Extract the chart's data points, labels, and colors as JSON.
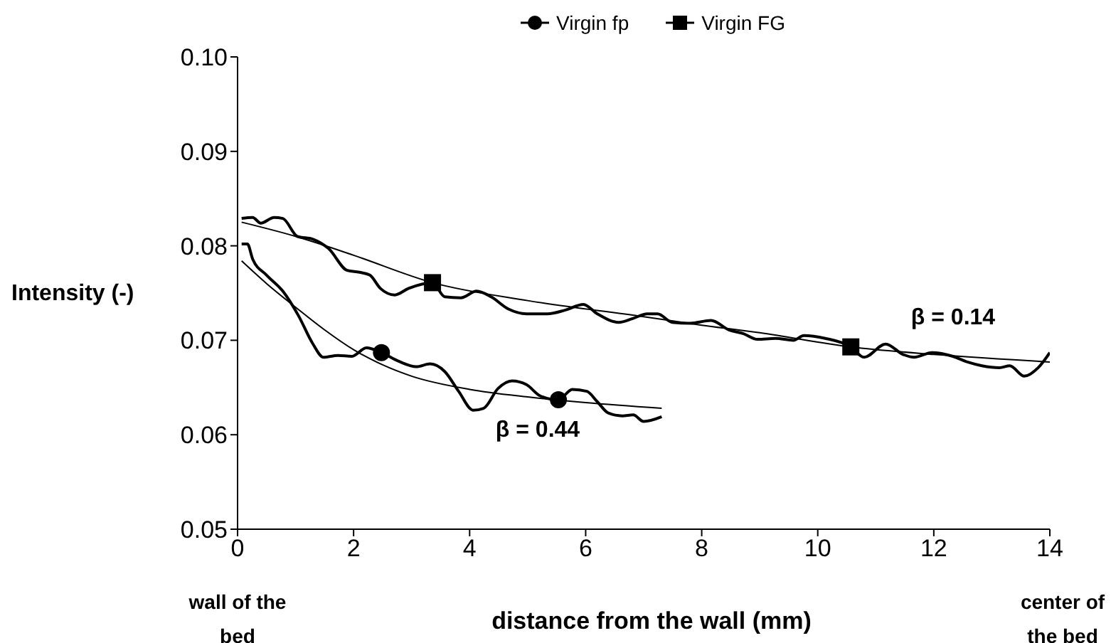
{
  "chart_data": {
    "type": "line",
    "xlabel": "distance from the wall (mm)",
    "ylabel": "Intensity (-)",
    "xlim": [
      0,
      14
    ],
    "xticks": [
      0,
      2,
      4,
      6,
      8,
      10,
      12,
      14
    ],
    "ylim": [
      0.05,
      0.1
    ],
    "yticks": [
      0.05,
      0.06,
      0.07,
      0.08,
      0.09,
      {
        "value": 0.1,
        "label": "0.10"
      }
    ],
    "grid": false,
    "legend": "top",
    "line_style": "solid",
    "annotations": [
      "wall of the bed",
      "center of the bed",
      "β = 0.44",
      "β = 0.14"
    ],
    "series": [
      {
        "name": "Virgin fp",
        "color": "#000000",
        "x": [
          0.07,
          0.17,
          0.26,
          0.5,
          0.78,
          1.05,
          1.3,
          1.48,
          1.73,
          1.97,
          2.22,
          2.48,
          2.77,
          3.08,
          3.32,
          3.57,
          3.81,
          4.06,
          4.24,
          4.49,
          4.73,
          4.98,
          5.22,
          5.53,
          5.77,
          6.02,
          6.2,
          6.39,
          6.63,
          6.82,
          7.0,
          7.31
        ],
        "values": [
          0.0802,
          0.0802,
          0.0786,
          0.0769,
          0.0752,
          0.0726,
          0.0696,
          0.0682,
          0.0684,
          0.0683,
          0.0692,
          0.0687,
          0.0678,
          0.0672,
          0.0675,
          0.0667,
          0.0646,
          0.0626,
          0.0628,
          0.0649,
          0.0657,
          0.0653,
          0.0641,
          0.0637,
          0.0648,
          0.0646,
          0.0635,
          0.0623,
          0.062,
          0.0621,
          0.0614,
          0.0619
        ]
      },
      {
        "name": "Virgin FG",
        "color": "#000000",
        "x": [
          0.07,
          0.26,
          0.4,
          0.63,
          0.78,
          1.03,
          1.3,
          1.57,
          1.89,
          2.1,
          2.28,
          2.46,
          2.71,
          2.95,
          3.36,
          3.57,
          3.85,
          4.12,
          4.37,
          4.67,
          4.98,
          5.34,
          5.65,
          5.96,
          6.2,
          6.57,
          6.81,
          7.06,
          7.24,
          7.49,
          7.8,
          8.16,
          8.47,
          8.72,
          8.96,
          9.27,
          9.58,
          9.76,
          10.13,
          10.57,
          10.8,
          11.17,
          11.47,
          11.66,
          11.97,
          12.33,
          12.58,
          12.83,
          13.13,
          13.31,
          13.56,
          13.8,
          14.0
        ],
        "values": [
          0.0829,
          0.083,
          0.0824,
          0.083,
          0.0829,
          0.081,
          0.0807,
          0.0797,
          0.0774,
          0.0772,
          0.0769,
          0.0755,
          0.0748,
          0.0755,
          0.0761,
          0.0746,
          0.0745,
          0.0752,
          0.0746,
          0.0733,
          0.0728,
          0.0728,
          0.0732,
          0.0738,
          0.0728,
          0.0719,
          0.0723,
          0.0728,
          0.0728,
          0.0719,
          0.0718,
          0.0721,
          0.0711,
          0.0707,
          0.0701,
          0.0702,
          0.07,
          0.0705,
          0.0702,
          0.0693,
          0.0682,
          0.0696,
          0.0685,
          0.0682,
          0.0687,
          0.0683,
          0.0677,
          0.0673,
          0.0671,
          0.0673,
          0.0662,
          0.0671,
          0.0687
        ]
      },
      {
        "type": "scatter",
        "color": "#000000",
        "marker": "circle",
        "x": [
          2.48,
          5.53
        ],
        "values": [
          0.0687,
          0.0637
        ]
      },
      {
        "type": "scatter",
        "color": "#000000",
        "marker": "square",
        "x": [
          3.36,
          10.57
        ],
        "values": [
          0.0761,
          0.0693
        ]
      },
      {
        "color": "#000000",
        "x": [
          0.07,
          0.5,
          1,
          1.5,
          2,
          2.5,
          3,
          4,
          5,
          6,
          7.31
        ],
        "values": [
          0.0784,
          0.076,
          0.0735,
          0.0711,
          0.069,
          0.0674,
          0.0662,
          0.0648,
          0.064,
          0.0634,
          0.0628
        ]
      },
      {
        "color": "#000000",
        "x": [
          0.07,
          1,
          2,
          3.36,
          5,
          7,
          8,
          9,
          10.57,
          12,
          14
        ],
        "values": [
          0.0825,
          0.081,
          0.079,
          0.0761,
          0.0742,
          0.0725,
          0.0716,
          0.0708,
          0.0693,
          0.0685,
          0.0677
        ]
      }
    ]
  }
}
